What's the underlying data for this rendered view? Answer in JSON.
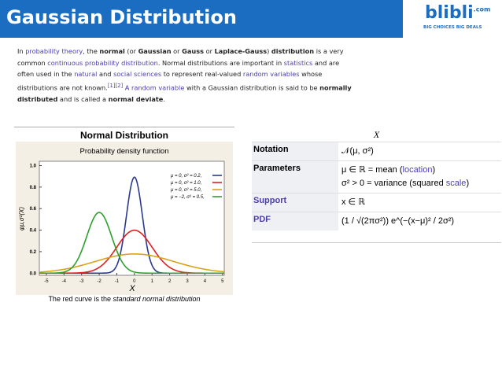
{
  "header": {
    "title": "Gaussian Distribution",
    "logo": "blibli",
    "logo_suffix": ".com",
    "logo_tagline": "BIG CHOICES  BIG DEALS"
  },
  "paragraph": [
    {
      "text": "In "
    },
    {
      "text": "probability theory",
      "link": true
    },
    {
      "text": ", the "
    },
    {
      "text": "normal",
      "bold": true
    },
    {
      "text": " (or "
    },
    {
      "text": "Gaussian",
      "bold": true
    },
    {
      "text": " or "
    },
    {
      "text": "Gauss",
      "bold": true
    },
    {
      "text": " or "
    },
    {
      "text": "Laplace-Gauss",
      "bold": true
    },
    {
      "text": ") "
    },
    {
      "text": "distribution",
      "bold": true
    },
    {
      "text": " is a very common "
    },
    {
      "text": "continuous probability distribution",
      "link": true
    },
    {
      "text": ". Normal distributions are important in "
    },
    {
      "text": "statistics",
      "link": true
    },
    {
      "text": " and are often used in the "
    },
    {
      "text": "natural",
      "link": true
    },
    {
      "text": " and "
    },
    {
      "text": "social sciences",
      "link": true
    },
    {
      "text": " to represent real-valued "
    },
    {
      "text": "random variables",
      "link": true
    },
    {
      "text": " whose distributions are not known."
    },
    {
      "text": "[1][2]",
      "link": true,
      "sup": true
    },
    {
      "text": " "
    },
    {
      "text": "A random variable",
      "link": true
    },
    {
      "text": " with a Gaussian distribution is said to be "
    },
    {
      "text": "normally distributed",
      "bold": true
    },
    {
      "text": " and is called a "
    },
    {
      "text": "normal deviate",
      "bold": true
    },
    {
      "text": "."
    }
  ],
  "figure": {
    "title": "Normal Distribution",
    "caption": [
      {
        "text": "The red curve is the "
      },
      {
        "text": "standard normal distribution",
        "italic": true
      }
    ],
    "chart_data": {
      "type": "line",
      "title": "Probability density function",
      "x_label": "X",
      "y_label": "φμ,σ²(X)",
      "xlim": [
        -5.4,
        5.1
      ],
      "ylim": [
        -0.02,
        1.04
      ],
      "xticks": [
        -5,
        -4,
        -3,
        -2,
        -1,
        0,
        1,
        2,
        3,
        4,
        5
      ],
      "yticks": [
        {
          "value": 0,
          "label": "0.0"
        },
        {
          "value": 0.2,
          "label": "0.2"
        },
        {
          "value": 0.4,
          "label": "0.4"
        },
        {
          "value": 0.6,
          "label": "0.6"
        },
        {
          "value": 0.8,
          "label": "0.8"
        },
        {
          "value": 1,
          "label": "1.0"
        }
      ],
      "series": [
        {
          "name": "μ = 0,   σ² = 0.2,",
          "color": "#2b3a8c",
          "mu": 0,
          "sigma2": 0.2
        },
        {
          "name": "μ = 0,   σ² = 1.0,",
          "color": "#e02020",
          "mu": 0,
          "sigma2": 1
        },
        {
          "name": "μ = 0,   σ² = 5.0,",
          "color": "#d9a21b",
          "mu": 0,
          "sigma2": 5
        },
        {
          "name": "μ = −2, σ² = 0.5,",
          "color": "#2ea02e",
          "mu": -2,
          "sigma2": 0.5
        }
      ]
    }
  },
  "infobox": {
    "header": "X",
    "rows": [
      {
        "label": "Notation",
        "lines": [
          [
            {
              "text": "𝒩(μ, σ²)"
            }
          ]
        ]
      },
      {
        "label": "Parameters",
        "lines": [
          [
            {
              "text": "μ ∈ ℝ = mean ("
            },
            {
              "text": "location",
              "link": true
            },
            {
              "text": ")"
            }
          ],
          [
            {
              "text": "σ² > 0 = variance (squared "
            },
            {
              "text": "scale",
              "link": true
            },
            {
              "text": ")"
            }
          ]
        ]
      },
      {
        "label": "Support",
        "link": true,
        "lines": [
          [
            {
              "text": "x ∈ ℝ"
            }
          ]
        ]
      },
      {
        "label": "PDF",
        "link": true,
        "lines": [
          [
            {
              "text": "(1 / √(2πσ²)) e^(−(x−μ)² / 2σ²)"
            }
          ]
        ]
      }
    ]
  }
}
